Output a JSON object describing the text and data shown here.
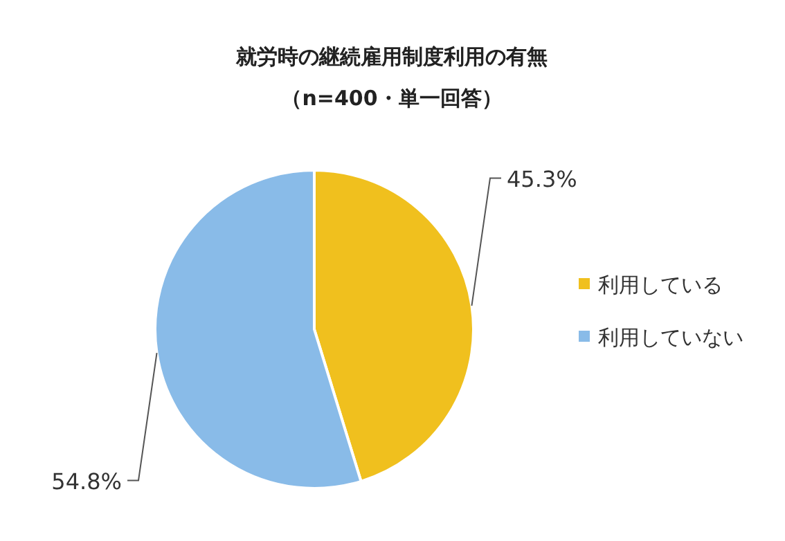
{
  "chart_data": {
    "type": "pie",
    "title": "就労時の継続雇用制度利用の有無",
    "subtitle": "（n=400・単一回答）",
    "categories": [
      "利用している",
      "利用していない"
    ],
    "values": [
      45.3,
      54.8
    ],
    "colors": [
      "#f0c01e",
      "#89bbe8"
    ],
    "value_labels": [
      "45.3%",
      "54.8%"
    ],
    "legend": "right"
  }
}
